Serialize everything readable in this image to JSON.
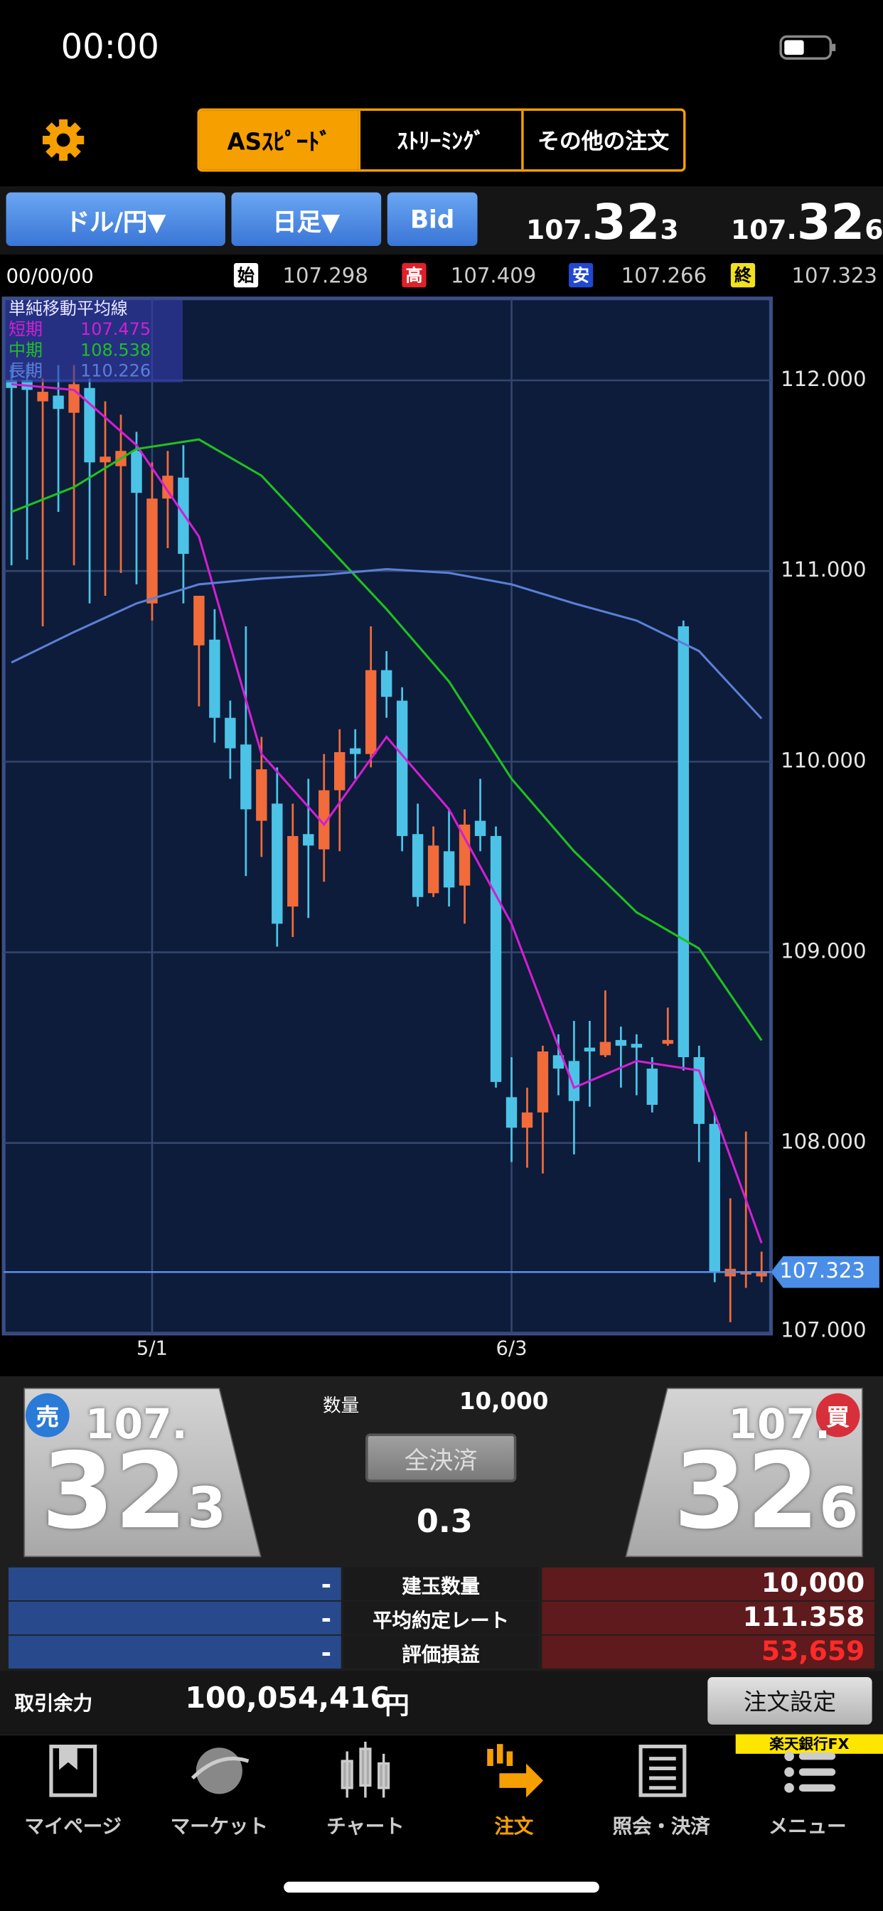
{
  "status_bar": {
    "time": "00:00"
  },
  "header": {
    "tabs": [
      "ASｽﾋﾟｰﾄﾞ",
      "ｽﾄﾘｰﾐﾝｸﾞ",
      "その他の注文"
    ]
  },
  "toolbar": {
    "pair": "ドル/円▼",
    "period": "日足▼",
    "price_type": "Bid",
    "bid": {
      "head": "107.",
      "main": "32",
      "tail": "3"
    },
    "ask": {
      "head": "107.",
      "main": "32",
      "tail": "6"
    }
  },
  "ohlc": {
    "date": "00/00/00",
    "items": [
      {
        "label": "始",
        "value": "107.298"
      },
      {
        "label": "高",
        "value": "107.409"
      },
      {
        "label": "安",
        "value": "107.266"
      },
      {
        "label": "終",
        "value": "107.323"
      }
    ]
  },
  "chart_data": {
    "type": "candlestick",
    "legend_title": "単純移動平均線",
    "up_color": "#f26b3a",
    "down_color": "#4cc3e6",
    "open": [
      112.0,
      112.0,
      111.89,
      111.92,
      111.83,
      111.96,
      111.57,
      111.55,
      111.63,
      110.83,
      111.38,
      111.49,
      110.61,
      110.64,
      110.23,
      110.09,
      109.69,
      109.78,
      109.24,
      109.62,
      109.54,
      109.85,
      110.07,
      110.04,
      110.48,
      110.32,
      109.62,
      109.31,
      109.53,
      109.35,
      109.69,
      109.61,
      108.24,
      108.08,
      108.16,
      108.46,
      108.43,
      108.5,
      108.46,
      108.54,
      108.52,
      108.39,
      108.52,
      110.71,
      108.45,
      108.1,
      107.3,
      107.31,
      107.3
    ],
    "high": [
      112.08,
      112.08,
      112.01,
      112.08,
      112.08,
      112.01,
      111.89,
      111.82,
      111.73,
      111.57,
      111.63,
      111.66,
      110.87,
      110.8,
      110.32,
      110.71,
      110.13,
      109.97,
      109.78,
      109.91,
      110.04,
      110.17,
      110.17,
      110.71,
      110.58,
      110.39,
      109.78,
      109.66,
      109.75,
      109.75,
      109.91,
      109.66,
      108.45,
      108.29,
      108.51,
      108.57,
      108.64,
      108.64,
      108.8,
      108.61,
      108.57,
      108.45,
      108.71,
      110.74,
      108.51,
      108.16,
      107.71,
      108.06,
      107.43
    ],
    "low": [
      111.03,
      111.06,
      110.71,
      111.31,
      111.03,
      110.83,
      110.87,
      110.99,
      110.93,
      110.74,
      111.12,
      110.83,
      110.29,
      110.1,
      109.91,
      109.4,
      109.5,
      109.03,
      109.08,
      109.18,
      109.37,
      109.53,
      109.91,
      109.97,
      110.23,
      109.53,
      109.24,
      109.29,
      109.24,
      109.15,
      109.53,
      108.29,
      107.9,
      107.87,
      107.84,
      108.25,
      107.94,
      108.19,
      108.45,
      108.29,
      108.25,
      108.16,
      108.51,
      108.38,
      107.9,
      107.27,
      107.06,
      107.24,
      107.27
    ],
    "close": [
      111.96,
      111.95,
      111.94,
      111.85,
      111.98,
      111.57,
      111.6,
      111.63,
      111.41,
      111.38,
      111.5,
      111.09,
      110.87,
      110.23,
      110.07,
      109.75,
      109.96,
      109.15,
      109.61,
      109.56,
      109.85,
      110.05,
      110.04,
      110.48,
      110.34,
      109.61,
      109.29,
      109.56,
      109.34,
      109.67,
      109.61,
      108.32,
      108.08,
      108.16,
      108.48,
      108.39,
      108.22,
      108.48,
      108.53,
      108.51,
      108.5,
      108.2,
      108.54,
      108.45,
      108.1,
      107.32,
      107.34,
      107.32,
      107.323
    ],
    "series": [
      {
        "name": "短期",
        "color": "#d21fd2",
        "x": [
          0,
          4,
          8,
          12,
          16,
          20,
          24,
          28,
          32,
          36,
          40,
          44,
          48
        ],
        "values": [
          111.98,
          111.95,
          111.66,
          111.18,
          110.04,
          109.67,
          110.13,
          109.75,
          109.15,
          108.29,
          108.43,
          108.38,
          107.475
        ]
      },
      {
        "name": "中期",
        "color": "#1fc01f",
        "x": [
          0,
          4,
          8,
          12,
          16,
          20,
          24,
          28,
          32,
          36,
          40,
          44,
          48
        ],
        "values": [
          111.31,
          111.44,
          111.64,
          111.69,
          111.5,
          111.15,
          110.8,
          110.42,
          109.91,
          109.53,
          109.21,
          109.02,
          108.538
        ]
      },
      {
        "name": "長期",
        "color": "#5b7fd6",
        "x": [
          0,
          4,
          8,
          12,
          16,
          20,
          24,
          28,
          32,
          36,
          40,
          44,
          48
        ],
        "values": [
          110.52,
          110.68,
          110.83,
          110.93,
          110.96,
          110.98,
          111.01,
          110.99,
          110.93,
          110.83,
          110.74,
          110.58,
          110.226
        ]
      }
    ],
    "xlim": [
      -0.5,
      48.6
    ],
    "xticks": [
      {
        "value": 9,
        "label": "5/1"
      },
      {
        "value": 32,
        "label": "6/3"
      }
    ],
    "ylim": [
      107,
      112.43
    ],
    "yticks": [
      {
        "value": 107,
        "label": "107.000"
      },
      {
        "value": 108,
        "label": "108.000"
      },
      {
        "value": 109,
        "label": "109.000"
      },
      {
        "value": 110,
        "label": "110.000"
      },
      {
        "value": 111,
        "label": "111.000"
      },
      {
        "value": 112,
        "label": "112.000"
      }
    ],
    "grid": true,
    "current_price": 107.323
  },
  "trade": {
    "sell": {
      "badge": "売",
      "head": "107.",
      "main": "32",
      "tail": "3"
    },
    "buy": {
      "badge": "買",
      "head": "107.",
      "main": "32",
      "tail": "6"
    },
    "qty_label": "数量",
    "qty": "10,000",
    "close_all": "全決済",
    "spread": "0.3"
  },
  "table": {
    "rows": [
      [
        "-",
        "建玉数量",
        "10,000"
      ],
      [
        "-",
        "平均約定レート",
        "111.358"
      ],
      [
        "-",
        "評価損益",
        "53,659"
      ]
    ]
  },
  "margin": {
    "label": "取引余力",
    "value": "100,054,416",
    "unit": "円",
    "button": "注文設定"
  },
  "tabs": [
    "マイページ",
    "マーケット",
    "チャート",
    "注文",
    "照会・決済",
    "メニュー"
  ],
  "brand": "楽天銀行FX"
}
